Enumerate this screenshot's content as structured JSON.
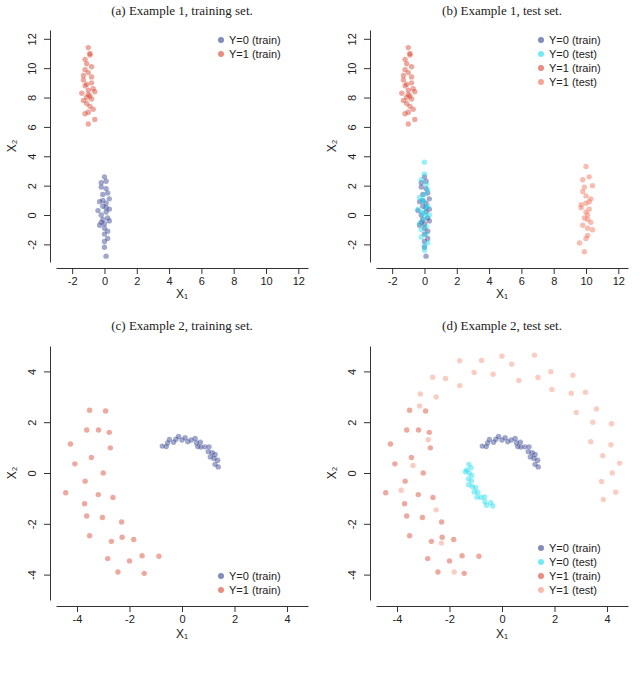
{
  "chart_data": [
    {
      "type": "scatter",
      "title": "(a) Example 1, training set.",
      "x_label": "X₁",
      "y_label": "X₂",
      "xlim": [
        -3,
        12.6
      ],
      "ylim": [
        -3.2,
        12.6
      ],
      "xticks": [
        -2,
        0,
        2,
        4,
        6,
        8,
        10,
        12
      ],
      "yticks": [
        -2,
        0,
        2,
        4,
        6,
        8,
        10,
        12
      ],
      "legend": "topright",
      "series": [
        {
          "name": "Y=0 (train)",
          "color": "#2e3d8f",
          "x": [
            0.1,
            -0.2,
            0.3,
            0.0,
            -0.1,
            0.2,
            -0.3,
            0.1,
            0.0,
            -0.2,
            0.2,
            0.1,
            -0.1,
            0.3,
            -0.3,
            0.0,
            0.1,
            -0.2,
            0.2,
            -0.1,
            0.0,
            0.1,
            -0.4,
            0.2,
            0.0,
            -0.1,
            0.3,
            0.1,
            -0.2,
            0.0
          ],
          "values": [
            0.2,
            -0.5,
            1.1,
            -1.3,
            0.6,
            -0.2,
            0.9,
            1.8,
            -0.9,
            0.0,
            -1.6,
            2.3,
            1.4,
            0.4,
            -0.7,
            -2.2,
            0.8,
            1.9,
            -1.1,
            -0.3,
            2.6,
            -2.8,
            0.3,
            1.5,
            -1.8,
            1.0,
            -0.4,
            0.5,
            2.2,
            -0.6
          ]
        },
        {
          "name": "Y=1 (train)",
          "color": "#d8412a",
          "x": [
            -1.0,
            -0.8,
            -1.3,
            -0.9,
            -1.1,
            -0.7,
            -1.2,
            -1.0,
            -0.6,
            -1.4,
            -0.9,
            -1.1,
            -0.8,
            -1.2,
            -1.0,
            -0.7,
            -1.3,
            -0.9,
            -1.1,
            -0.8,
            -1.0,
            -1.2,
            -0.6,
            -1.0,
            -0.9,
            -1.1,
            -1.3,
            -0.8,
            -1.0,
            -1.2
          ],
          "values": [
            8.5,
            7.9,
            9.2,
            8.1,
            10.3,
            7.2,
            8.8,
            9.7,
            6.5,
            8.3,
            10.9,
            7.6,
            9.0,
            6.9,
            11.4,
            8.6,
            9.5,
            7.4,
            8.0,
            10.1,
            6.2,
            9.9,
            8.4,
            7.0,
            11.0,
            8.9,
            7.8,
            9.4,
            8.2,
            10.6
          ]
        }
      ]
    },
    {
      "type": "scatter",
      "title": "(b) Example 1, test set.",
      "x_label": "X₁",
      "y_label": "X₂",
      "xlim": [
        -3,
        12.6
      ],
      "ylim": [
        -3.2,
        12.6
      ],
      "xticks": [
        -2,
        0,
        2,
        4,
        6,
        8,
        10,
        12
      ],
      "yticks": [
        -2,
        0,
        2,
        4,
        6,
        8,
        10,
        12
      ],
      "legend": "topright",
      "series": [
        {
          "name": "Y=0 (train)",
          "color": "#2e3d8f",
          "x": [
            0.1,
            -0.2,
            0.3,
            0.0,
            -0.1,
            0.2,
            -0.3,
            0.1,
            0.0,
            -0.2,
            0.2,
            0.1,
            -0.1,
            0.3,
            -0.3,
            0.0,
            0.1,
            -0.2,
            0.2,
            -0.1,
            0.0,
            0.1,
            -0.4,
            0.2,
            0.0,
            -0.1,
            0.3,
            0.1,
            -0.2,
            0.0
          ],
          "values": [
            0.2,
            -0.5,
            1.1,
            -1.3,
            0.6,
            -0.2,
            0.9,
            1.8,
            -0.9,
            0.0,
            -1.6,
            2.3,
            1.4,
            0.4,
            -0.7,
            -2.2,
            0.8,
            1.9,
            -1.1,
            -0.3,
            2.6,
            -2.8,
            0.3,
            1.5,
            -1.8,
            1.0,
            -0.4,
            0.5,
            2.2,
            -0.6
          ]
        },
        {
          "name": "Y=0 (test)",
          "color": "#19dcef",
          "x": [
            -0.1,
            0.1,
            -0.3,
            0.0,
            -0.2,
            0.2,
            -0.1,
            0.1,
            -0.4,
            0.0,
            0.2,
            -0.2,
            0.1,
            -0.1,
            0.0,
            -0.3,
            0.2,
            0.0,
            -0.1,
            0.1,
            -0.2,
            0.3,
            0.0,
            -0.1,
            0.1
          ],
          "values": [
            0.1,
            -0.8,
            1.2,
            3.6,
            -1.5,
            0.6,
            -0.3,
            2.1,
            0.4,
            -2.4,
            1.7,
            -1.0,
            -0.1,
            0.9,
            2.8,
            -0.6,
            -1.9,
            1.4,
            0.2,
            -1.3,
            2.4,
            0.0,
            -2.1,
            1.0,
            0.5
          ]
        },
        {
          "name": "Y=1 (train)",
          "color": "#d8412a",
          "x": [
            -1.0,
            -0.8,
            -1.3,
            -0.9,
            -1.1,
            -0.7,
            -1.2,
            -1.0,
            -0.6,
            -1.4,
            -0.9,
            -1.1,
            -0.8,
            -1.2,
            -1.0,
            -0.7,
            -1.3,
            -0.9,
            -1.1,
            -0.8,
            -1.0,
            -1.2,
            -0.6,
            -1.0,
            -0.9,
            -1.1,
            -1.3,
            -0.8,
            -1.0,
            -1.2
          ],
          "values": [
            8.5,
            7.9,
            9.2,
            8.1,
            10.3,
            7.2,
            8.8,
            9.7,
            6.5,
            8.3,
            10.9,
            7.6,
            9.0,
            6.9,
            11.4,
            8.6,
            9.5,
            7.4,
            8.0,
            10.1,
            6.2,
            9.9,
            8.4,
            7.0,
            11.0,
            8.9,
            7.8,
            9.4,
            8.2,
            10.6
          ]
        },
        {
          "name": "Y=1 (test)",
          "color": "#f26b4f",
          "x": [
            10.0,
            9.8,
            10.3,
            9.7,
            10.1,
            10.4,
            9.9,
            10.2,
            9.6,
            10.0,
            10.3,
            9.8,
            10.1,
            9.9,
            10.2,
            10.0,
            9.7,
            10.4,
            10.1,
            9.9,
            10.0,
            10.2,
            9.8,
            10.1,
            10.0
          ],
          "values": [
            0.2,
            -0.7,
            1.1,
            0.5,
            -1.4,
            2.0,
            -0.2,
            0.9,
            -1.9,
            3.3,
            -0.5,
            1.6,
            0.0,
            -2.5,
            2.6,
            1.3,
            0.7,
            -1.0,
            -0.3,
            1.9,
            -1.6,
            0.4,
            2.4,
            -0.9,
            0.8
          ]
        }
      ]
    },
    {
      "type": "scatter",
      "title": "(c) Example 2, training set.",
      "x_label": "X₁",
      "y_label": "X₂",
      "xlim": [
        -4.8,
        4.8
      ],
      "ylim": [
        -5,
        5
      ],
      "xticks": [
        -4,
        -2,
        0,
        2,
        4
      ],
      "yticks": [
        -4,
        -2,
        0,
        2,
        4
      ],
      "legend": "bottomright",
      "series": [
        {
          "name": "Y=0 (train)",
          "color": "#2e3d8f",
          "x": [
            1.38,
            1.26,
            1.36,
            1.22,
            1.08,
            1.15,
            1.0,
            1.03,
            0.87,
            0.72,
            0.7,
            0.55,
            0.5,
            0.35,
            0.22,
            0.12,
            0.0,
            -0.13,
            -0.23,
            -0.32,
            -0.48,
            -0.55,
            -0.6,
            -0.75,
            0.6,
            1.26
          ],
          "values": [
            0.24,
            0.34,
            0.5,
            0.57,
            0.63,
            0.8,
            0.84,
            1.03,
            1.03,
            1.02,
            1.21,
            1.18,
            1.36,
            1.3,
            1.23,
            1.39,
            1.3,
            1.44,
            1.33,
            1.21,
            1.32,
            1.18,
            1.04,
            1.06,
            1.04,
            0.73
          ]
        },
        {
          "name": "Y=1 (train)",
          "color": "#d8412a",
          "x": [
            -2.91,
            -3.52,
            -2.77,
            -3.63,
            -2.73,
            -4.25,
            -3.45,
            -4.08,
            -3.0,
            -3.69,
            -4.43,
            -3.19,
            -2.63,
            -3.63,
            -3.03,
            -3.52,
            -2.3,
            -2.69,
            -2.83,
            -1.84,
            -2.0,
            -1.52,
            -1.44,
            -0.88,
            -3.18,
            -3.71,
            -2.28,
            -2.44
          ],
          "values": [
            2.44,
            2.47,
            1.6,
            1.69,
            0.99,
            1.14,
            0.61,
            0.36,
            0.0,
            -0.32,
            -0.78,
            -0.85,
            -0.96,
            -1.69,
            -1.75,
            -2.47,
            -1.93,
            -2.69,
            -3.37,
            -2.62,
            -3.46,
            -3.26,
            -3.95,
            -3.28,
            1.69,
            -1.21,
            -2.53,
            -3.9
          ]
        }
      ]
    },
    {
      "type": "scatter",
      "title": "(d) Example 2, test set.",
      "x_label": "X₁",
      "y_label": "X₂",
      "xlim": [
        -4.8,
        4.8
      ],
      "ylim": [
        -5,
        5
      ],
      "xticks": [
        -4,
        -2,
        0,
        2,
        4
      ],
      "yticks": [
        -4,
        -2,
        0,
        2,
        4
      ],
      "legend": "bottomright",
      "series": [
        {
          "name": "Y=0 (train)",
          "color": "#2e3d8f",
          "x": [
            1.38,
            1.26,
            1.36,
            1.22,
            1.08,
            1.15,
            1.0,
            1.03,
            0.87,
            0.72,
            0.7,
            0.55,
            0.5,
            0.35,
            0.22,
            0.12,
            0.0,
            -0.13,
            -0.23,
            -0.32,
            -0.48,
            -0.55,
            -0.6,
            -0.75,
            0.6,
            1.26
          ],
          "values": [
            0.24,
            0.34,
            0.5,
            0.57,
            0.63,
            0.8,
            0.84,
            1.03,
            1.03,
            1.02,
            1.21,
            1.18,
            1.36,
            1.3,
            1.23,
            1.39,
            1.3,
            1.44,
            1.33,
            1.21,
            1.32,
            1.18,
            1.04,
            1.06,
            1.04,
            0.73
          ]
        },
        {
          "name": "Y=0 (test)",
          "color": "#19dcef",
          "x": [
            -1.26,
            -1.18,
            -1.34,
            -1.25,
            -1.15,
            -1.28,
            -1.16,
            -1.27,
            -1.13,
            -1.0,
            -1.06,
            -0.92,
            -0.95,
            -0.8,
            -0.66,
            -0.65,
            -0.59,
            -0.43,
            -0.35,
            -1.4
          ],
          "values": [
            0.34,
            0.21,
            0.12,
            0.0,
            -0.1,
            -0.23,
            -0.31,
            -0.46,
            -0.53,
            -0.58,
            -0.75,
            -0.77,
            -0.95,
            -0.96,
            -0.94,
            -1.13,
            -1.27,
            -1.17,
            -1.3,
            0.05
          ]
        },
        {
          "name": "Y=1 (train)",
          "color": "#d8412a",
          "x": [
            -2.91,
            -3.52,
            -2.77,
            -3.63,
            -2.73,
            -4.25,
            -3.45,
            -4.08,
            -3.0,
            -3.69,
            -4.43,
            -3.19,
            -2.63,
            -3.63,
            -3.03,
            -3.52,
            -2.3,
            -2.69,
            -2.83,
            -1.84,
            -2.0,
            -1.52,
            -1.44,
            -0.88,
            -3.18,
            -3.71,
            -2.28,
            -2.44
          ],
          "values": [
            2.44,
            2.47,
            1.6,
            1.69,
            0.99,
            1.14,
            0.61,
            0.36,
            0.0,
            -0.32,
            -0.78,
            -0.85,
            -0.96,
            -1.69,
            -1.75,
            -2.47,
            -1.93,
            -2.69,
            -3.37,
            -2.62,
            -3.46,
            -3.26,
            -3.95,
            -3.28,
            1.69,
            -1.21,
            -2.53,
            -3.9
          ]
        },
        {
          "name": "Y=1 (test)",
          "color": "#f3907a",
          "x": [
            3.86,
            4.33,
            3.79,
            4.2,
            4.48,
            3.84,
            4.15,
            3.38,
            4.17,
            3.46,
            3.6,
            2.83,
            3.18,
            2.64,
            2.7,
            1.9,
            1.86,
            1.37,
            1.24,
            0.64,
            0.37,
            0.0,
            -0.34,
            -0.78,
            -1.06,
            -1.61,
            -1.61,
            -2.15,
            -2.64,
            -2.51,
            -3.11,
            -3.14,
            -2.81,
            -3.39,
            -3.84,
            -2.51,
            -2.31,
            -1.82
          ],
          "values": [
            -1.04,
            -0.76,
            -0.33,
            0.0,
            0.39,
            0.68,
            1.11,
            1.23,
            1.94,
            2.0,
            2.52,
            2.38,
            3.18,
            3.14,
            3.85,
            3.29,
            3.99,
            3.76,
            4.64,
            3.64,
            4.28,
            4.6,
            3.89,
            4.43,
            3.96,
            4.42,
            3.44,
            3.72,
            3.77,
            2.99,
            3.11,
            2.64,
            1.31,
            0.3,
            -0.68,
            -1.45,
            -2.76,
            -3.9
          ]
        }
      ]
    }
  ]
}
